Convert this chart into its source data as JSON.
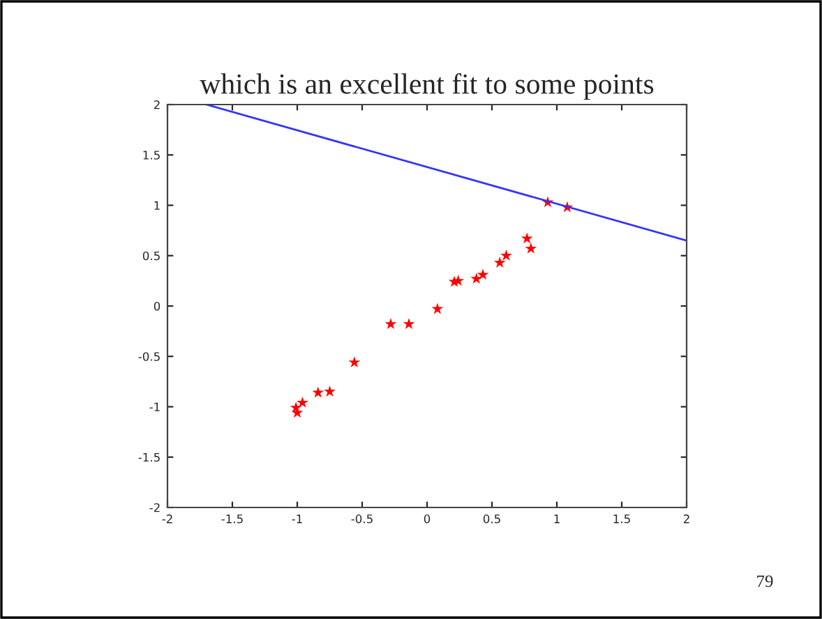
{
  "chart_data": {
    "type": "scatter",
    "title": "which is an excellent fit to some points",
    "xlim": [
      -2,
      2
    ],
    "ylim": [
      -2,
      2
    ],
    "xticks": [
      -2,
      -1.5,
      -1,
      -0.5,
      0,
      0.5,
      1,
      1.5,
      2
    ],
    "yticks": [
      -2,
      -1.5,
      -1,
      -0.5,
      0,
      0.5,
      1,
      1.5,
      2
    ],
    "grid": false,
    "series": [
      {
        "marker": "star",
        "color": "#ff0000",
        "x": [
          -1.01,
          -1.0,
          -0.96,
          -0.84,
          -0.75,
          -0.56,
          -0.28,
          -0.14,
          0.08,
          0.21,
          0.24,
          0.38,
          0.43,
          0.56,
          0.61,
          0.77,
          0.8,
          0.93,
          1.08
        ],
        "values": [
          -1.01,
          -1.06,
          -0.96,
          -0.86,
          -0.85,
          -0.56,
          -0.18,
          -0.18,
          -0.03,
          0.24,
          0.25,
          0.27,
          0.31,
          0.43,
          0.5,
          0.67,
          0.57,
          1.03,
          0.98
        ]
      },
      {
        "type": "line",
        "color": "#3333ff",
        "x": [
          -1.7,
          2
        ],
        "values": [
          2,
          0.65
        ]
      }
    ],
    "annotations": [
      "79"
    ]
  }
}
